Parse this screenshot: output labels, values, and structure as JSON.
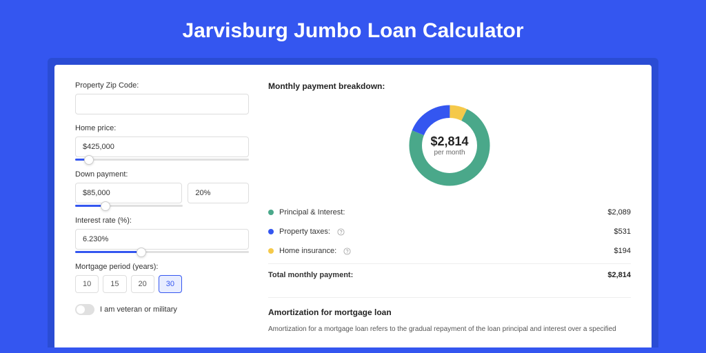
{
  "page": {
    "title": "Jarvisburg Jumbo Loan Calculator",
    "colors": {
      "page_bg": "#3456f0",
      "outer_card_bg": "#2a4cd4",
      "inner_card_bg": "#ffffff",
      "accent": "#3456f0",
      "text_primary": "#222222",
      "text_secondary": "#555555",
      "border": "#dddddd"
    }
  },
  "form": {
    "zip": {
      "label": "Property Zip Code:",
      "value": ""
    },
    "home_price": {
      "label": "Home price:",
      "value": "$425,000",
      "slider_pct": 8
    },
    "down_payment": {
      "label": "Down payment:",
      "amount": "$85,000",
      "percent": "20%",
      "slider_pct": 28
    },
    "interest_rate": {
      "label": "Interest rate (%):",
      "value": "6.230%",
      "slider_pct": 38
    },
    "mortgage_period": {
      "label": "Mortgage period (years):",
      "options": [
        "10",
        "15",
        "20",
        "30"
      ],
      "selected": "30"
    },
    "veteran": {
      "label": "I am veteran or military",
      "checked": false
    }
  },
  "breakdown": {
    "title": "Monthly payment breakdown:",
    "donut": {
      "amount": "$2,814",
      "sub": "per month",
      "slices": [
        {
          "name": "home_insurance",
          "pct": 7,
          "color": "#f5c94a"
        },
        {
          "name": "principal_interest",
          "pct": 74,
          "color": "#4aa88a"
        },
        {
          "name": "property_taxes",
          "pct": 19,
          "color": "#3456f0"
        }
      ]
    },
    "rows": [
      {
        "label": "Principal & Interest:",
        "value": "$2,089",
        "color": "#4aa88a",
        "info": false
      },
      {
        "label": "Property taxes:",
        "value": "$531",
        "color": "#3456f0",
        "info": true
      },
      {
        "label": "Home insurance:",
        "value": "$194",
        "color": "#f5c94a",
        "info": true
      }
    ],
    "total": {
      "label": "Total monthly payment:",
      "value": "$2,814"
    }
  },
  "amortization": {
    "title": "Amortization for mortgage loan",
    "text": "Amortization for a mortgage loan refers to the gradual repayment of the loan principal and interest over a specified"
  }
}
